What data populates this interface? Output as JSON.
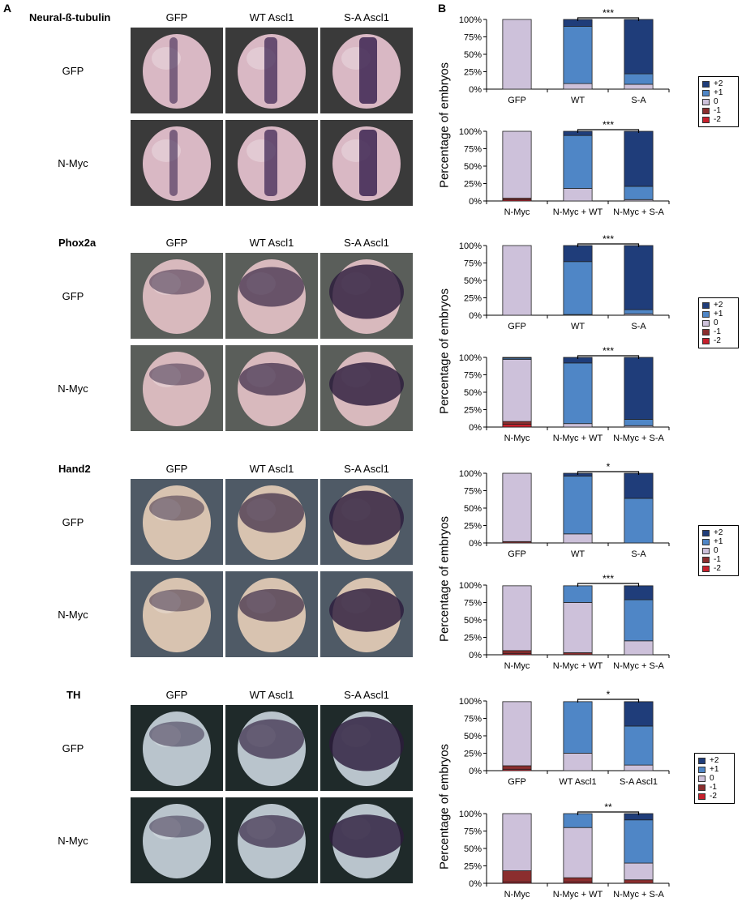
{
  "panel_letters": {
    "a": "A",
    "b": "B"
  },
  "y_axis_label": "Percentage of embryos",
  "legend_items": [
    {
      "label": "+2",
      "color": "#1f3d7a"
    },
    {
      "label": "+1",
      "color": "#4f86c6"
    },
    {
      "label": "0",
      "color": "#cdc1da"
    },
    {
      "label": "-1",
      "color": "#8b2e2e"
    },
    {
      "label": "-2",
      "color": "#c8202c"
    }
  ],
  "gene_panels": [
    {
      "gene": "Neural-ß-tubulin",
      "columns": [
        "GFP",
        "WT Ascl1",
        "S-A Ascl1"
      ],
      "rows": [
        "GFP",
        "N-Myc"
      ]
    },
    {
      "gene": "Phox2a",
      "columns": [
        "GFP",
        "WT Ascl1",
        "S-A Ascl1"
      ],
      "rows": [
        "GFP",
        "N-Myc"
      ]
    },
    {
      "gene": "Hand2",
      "columns": [
        "GFP",
        "WT Ascl1",
        "S-A Ascl1"
      ],
      "rows": [
        "GFP",
        "N-Myc"
      ]
    },
    {
      "gene": "TH",
      "columns": [
        "GFP",
        "WT Ascl1",
        "S-A Ascl1"
      ],
      "rows": [
        "GFP",
        "N-Myc"
      ]
    }
  ],
  "chart_data": [
    {
      "type": "bar",
      "stacked": true,
      "categories": [
        "GFP",
        "WT",
        "S-A"
      ],
      "series": [
        {
          "name": "-2",
          "values": [
            0,
            0,
            0
          ]
        },
        {
          "name": "-1",
          "values": [
            0,
            0,
            0
          ]
        },
        {
          "name": "0",
          "values": [
            100,
            8,
            7
          ]
        },
        {
          "name": "+1",
          "values": [
            0,
            82,
            15
          ]
        },
        {
          "name": "+2",
          "values": [
            0,
            10,
            78
          ]
        }
      ],
      "yticks": [
        "0%",
        "25%",
        "50%",
        "75%",
        "100%"
      ],
      "ylim": [
        0,
        100
      ],
      "significance": "***",
      "bracket": [
        1,
        2
      ]
    },
    {
      "type": "bar",
      "stacked": true,
      "categories": [
        "N-Myc",
        "N-Myc + WT",
        "N-Myc + S-A"
      ],
      "series": [
        {
          "name": "-2",
          "values": [
            2,
            0,
            0
          ]
        },
        {
          "name": "-1",
          "values": [
            2,
            0,
            0
          ]
        },
        {
          "name": "0",
          "values": [
            96,
            18,
            2
          ]
        },
        {
          "name": "+1",
          "values": [
            0,
            76,
            19
          ]
        },
        {
          "name": "+2",
          "values": [
            0,
            6,
            79
          ]
        }
      ],
      "yticks": [
        "0%",
        "25%",
        "50%",
        "75%",
        "100%"
      ],
      "ylim": [
        0,
        100
      ],
      "significance": "***",
      "bracket": [
        1,
        2
      ]
    },
    {
      "type": "bar",
      "stacked": true,
      "categories": [
        "GFP",
        "WT",
        "S-A"
      ],
      "series": [
        {
          "name": "-2",
          "values": [
            0,
            0,
            0
          ]
        },
        {
          "name": "-1",
          "values": [
            0,
            0,
            0
          ]
        },
        {
          "name": "0",
          "values": [
            100,
            1,
            2
          ]
        },
        {
          "name": "+1",
          "values": [
            0,
            76,
            6
          ]
        },
        {
          "name": "+2",
          "values": [
            0,
            23,
            92
          ]
        }
      ],
      "yticks": [
        "0%",
        "25%",
        "50%",
        "75%",
        "100%"
      ],
      "ylim": [
        0,
        100
      ],
      "significance": "***",
      "bracket": [
        1,
        2
      ]
    },
    {
      "type": "bar",
      "stacked": true,
      "categories": [
        "N-Myc",
        "N-Myc + WT",
        "N-Myc + S-A"
      ],
      "series": [
        {
          "name": "-2",
          "values": [
            4,
            0,
            0
          ]
        },
        {
          "name": "-1",
          "values": [
            4,
            0,
            0
          ]
        },
        {
          "name": "0",
          "values": [
            89,
            5,
            2
          ]
        },
        {
          "name": "+1",
          "values": [
            2,
            87,
            9
          ]
        },
        {
          "name": "+2",
          "values": [
            1,
            8,
            89
          ]
        }
      ],
      "yticks": [
        "0%",
        "25%",
        "50%",
        "75%",
        "100%"
      ],
      "ylim": [
        0,
        100
      ],
      "significance": "***",
      "bracket": [
        1,
        2
      ]
    },
    {
      "type": "bar",
      "stacked": true,
      "categories": [
        "GFP",
        "WT",
        "S-A"
      ],
      "series": [
        {
          "name": "-2",
          "values": [
            0,
            0,
            0
          ]
        },
        {
          "name": "-1",
          "values": [
            2,
            0,
            0
          ]
        },
        {
          "name": "0",
          "values": [
            98,
            13,
            0
          ]
        },
        {
          "name": "+1",
          "values": [
            0,
            83,
            64
          ]
        },
        {
          "name": "+2",
          "values": [
            0,
            4,
            36
          ]
        }
      ],
      "yticks": [
        "0%",
        "25%",
        "50%",
        "75%",
        "100%"
      ],
      "ylim": [
        0,
        100
      ],
      "significance": "*",
      "bracket": [
        1,
        2
      ]
    },
    {
      "type": "bar",
      "stacked": true,
      "categories": [
        "N-Myc",
        "N-Myc + WT",
        "N-Myc + S-A"
      ],
      "series": [
        {
          "name": "-2",
          "values": [
            2,
            0,
            0
          ]
        },
        {
          "name": "-1",
          "values": [
            4,
            3,
            0
          ]
        },
        {
          "name": "0",
          "values": [
            93,
            72,
            20
          ]
        },
        {
          "name": "+1",
          "values": [
            0,
            24,
            59
          ]
        },
        {
          "name": "+2",
          "values": [
            0,
            0,
            20
          ]
        }
      ],
      "yticks": [
        "0%",
        "25%",
        "50%",
        "75%",
        "100%"
      ],
      "ylim": [
        0,
        100
      ],
      "significance": "***",
      "bracket": [
        1,
        2
      ]
    },
    {
      "type": "bar",
      "stacked": true,
      "categories": [
        "GFP",
        "WT Ascl1",
        "S-A Ascl1"
      ],
      "series": [
        {
          "name": "-2",
          "values": [
            2,
            0,
            0
          ]
        },
        {
          "name": "-1",
          "values": [
            5,
            0,
            0
          ]
        },
        {
          "name": "0",
          "values": [
            92,
            25,
            8
          ]
        },
        {
          "name": "+1",
          "values": [
            0,
            74,
            56
          ]
        },
        {
          "name": "+2",
          "values": [
            0,
            0,
            35
          ]
        }
      ],
      "yticks": [
        "0%",
        "25%",
        "50%",
        "75%",
        "100%"
      ],
      "ylim": [
        0,
        100
      ],
      "significance": "*",
      "bracket": [
        1,
        2
      ]
    },
    {
      "type": "bar",
      "stacked": true,
      "categories": [
        "N-Myc",
        "N-Myc + WT",
        "N-Myc + S-A"
      ],
      "series": [
        {
          "name": "-2",
          "values": [
            2,
            2,
            0
          ]
        },
        {
          "name": "-1",
          "values": [
            16,
            6,
            5
          ]
        },
        {
          "name": "0",
          "values": [
            82,
            72,
            24
          ]
        },
        {
          "name": "+1",
          "values": [
            0,
            20,
            62
          ]
        },
        {
          "name": "+2",
          "values": [
            0,
            0,
            9
          ]
        }
      ],
      "yticks": [
        "0%",
        "25%",
        "50%",
        "75%",
        "100%"
      ],
      "ylim": [
        0,
        100
      ],
      "significance": "**",
      "bracket": [
        1,
        2
      ]
    }
  ]
}
